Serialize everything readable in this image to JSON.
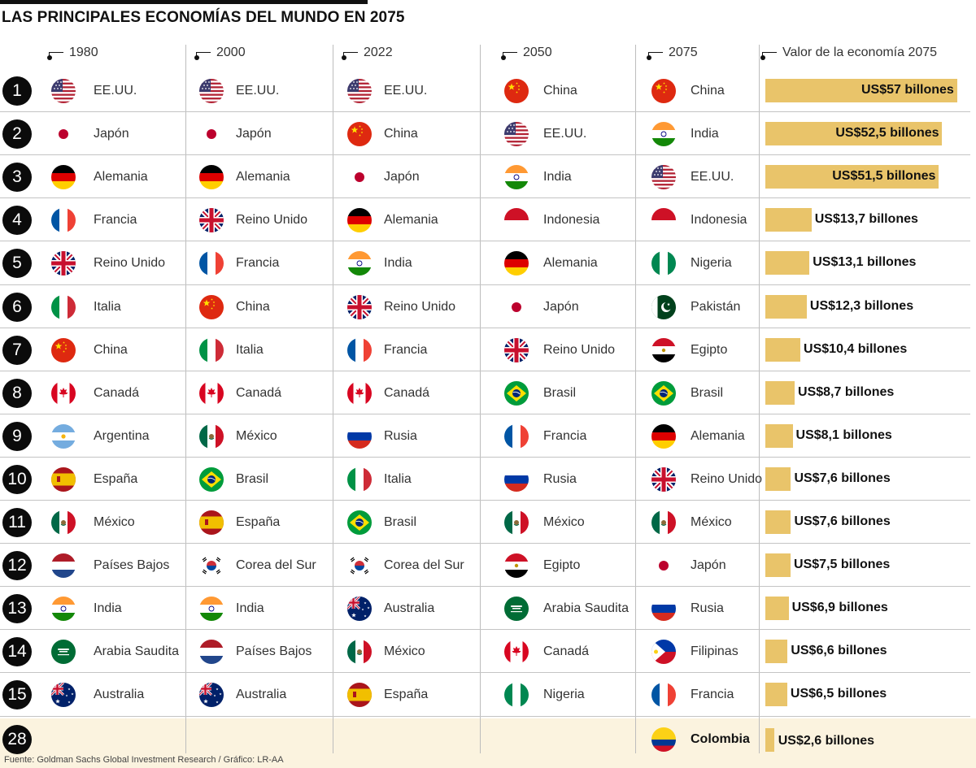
{
  "title": "LAS PRINCIPALES ECONOMÍAS DEL MUNDO EN 2075",
  "source": "Fuente: Goldman Sachs Global Investment Research / Gráfico: LR-AA",
  "column_headers": [
    "1980",
    "2000",
    "2022",
    "2050",
    "2075",
    "Valor de la economía 2075"
  ],
  "colors": {
    "bar": "#e9c46a",
    "footer_band": "#fbf3df",
    "rank_circle": "#0b0b0b"
  },
  "chart_data": {
    "type": "table",
    "title": "LAS PRINCIPALES ECONOMÍAS DEL MUNDO EN 2075",
    "years": [
      "1980",
      "2000",
      "2022",
      "2050",
      "2075"
    ],
    "value_label": "Valor de la economía 2075",
    "rows": [
      {
        "rank": "1",
        "c1980": "EE.UU.",
        "c2000": "EE.UU.",
        "c2022": "EE.UU.",
        "c2050": "China",
        "c2075": "China",
        "value": 57,
        "value_label": "US$57 billones"
      },
      {
        "rank": "2",
        "c1980": "Japón",
        "c2000": "Japón",
        "c2022": "China",
        "c2050": "EE.UU.",
        "c2075": "India",
        "value": 52.5,
        "value_label": "US$52,5 billones"
      },
      {
        "rank": "3",
        "c1980": "Alemania",
        "c2000": "Alemania",
        "c2022": "Japón",
        "c2050": "India",
        "c2075": "EE.UU.",
        "value": 51.5,
        "value_label": "US$51,5 billones"
      },
      {
        "rank": "4",
        "c1980": "Francia",
        "c2000": "Reino Unido",
        "c2022": "Alemania",
        "c2050": "Indonesia",
        "c2075": "Indonesia",
        "value": 13.7,
        "value_label": "US$13,7 billones"
      },
      {
        "rank": "5",
        "c1980": "Reino Unido",
        "c2000": "Francia",
        "c2022": "India",
        "c2050": "Alemania",
        "c2075": "Nigeria",
        "value": 13.1,
        "value_label": "US$13,1 billones"
      },
      {
        "rank": "6",
        "c1980": "Italia",
        "c2000": "China",
        "c2022": "Reino Unido",
        "c2050": "Japón",
        "c2075": "Pakistán",
        "value": 12.3,
        "value_label": "US$12,3 billones"
      },
      {
        "rank": "7",
        "c1980": "China",
        "c2000": "Italia",
        "c2022": "Francia",
        "c2050": "Reino Unido",
        "c2075": "Egipto",
        "value": 10.4,
        "value_label": "US$10,4 billones"
      },
      {
        "rank": "8",
        "c1980": "Canadá",
        "c2000": "Canadá",
        "c2022": "Canadá",
        "c2050": "Brasil",
        "c2075": "Brasil",
        "value": 8.7,
        "value_label": "US$8,7 billones"
      },
      {
        "rank": "9",
        "c1980": "Argentina",
        "c2000": "México",
        "c2022": "Rusia",
        "c2050": "Francia",
        "c2075": "Alemania",
        "value": 8.1,
        "value_label": "US$8,1 billones"
      },
      {
        "rank": "10",
        "c1980": "España",
        "c2000": "Brasil",
        "c2022": "Italia",
        "c2050": "Rusia",
        "c2075": "Reino Unido",
        "value": 7.6,
        "value_label": "US$7,6 billones"
      },
      {
        "rank": "11",
        "c1980": "México",
        "c2000": "España",
        "c2022": "Brasil",
        "c2050": "México",
        "c2075": "México",
        "value": 7.6,
        "value_label": "US$7,6 billones"
      },
      {
        "rank": "12",
        "c1980": "Países Bajos",
        "c2000": "Corea del Sur",
        "c2022": "Corea del Sur",
        "c2050": "Egipto",
        "c2075": "Japón",
        "value": 7.5,
        "value_label": "US$7,5 billones"
      },
      {
        "rank": "13",
        "c1980": "India",
        "c2000": "India",
        "c2022": "Australia",
        "c2050": "Arabia Saudita",
        "c2075": "Rusia",
        "value": 6.9,
        "value_label": "US$6,9 billones"
      },
      {
        "rank": "14",
        "c1980": "Arabia Saudita",
        "c2000": "Países Bajos",
        "c2022": "México",
        "c2050": "Canadá",
        "c2075": "Filipinas",
        "value": 6.6,
        "value_label": "US$6,6 billones"
      },
      {
        "rank": "15",
        "c1980": "Australia",
        "c2000": "Australia",
        "c2022": "España",
        "c2050": "Nigeria",
        "c2075": "Francia",
        "value": 6.5,
        "value_label": "US$6,5 billones"
      }
    ],
    "highlight": {
      "rank": "28",
      "c2075": "Colombia",
      "value": 2.6,
      "value_label": "US$2,6 billones"
    },
    "flag_icons": {
      "EE.UU.": "usa-flag-icon",
      "Japón": "japan-flag-icon",
      "Alemania": "germany-flag-icon",
      "Francia": "france-flag-icon",
      "Reino Unido": "uk-flag-icon",
      "Italia": "italy-flag-icon",
      "China": "china-flag-icon",
      "Canadá": "canada-flag-icon",
      "Argentina": "argentina-flag-icon",
      "España": "spain-flag-icon",
      "México": "mexico-flag-icon",
      "Países Bajos": "netherlands-flag-icon",
      "India": "india-flag-icon",
      "Arabia Saudita": "saudi-arabia-flag-icon",
      "Australia": "australia-flag-icon",
      "Corea del Sur": "south-korea-flag-icon",
      "Brasil": "brazil-flag-icon",
      "Rusia": "russia-flag-icon",
      "Indonesia": "indonesia-flag-icon",
      "Egipto": "egypt-flag-icon",
      "Nigeria": "nigeria-flag-icon",
      "Pakistán": "pakistan-flag-icon",
      "Filipinas": "philippines-flag-icon",
      "Colombia": "colombia-flag-icon"
    }
  }
}
